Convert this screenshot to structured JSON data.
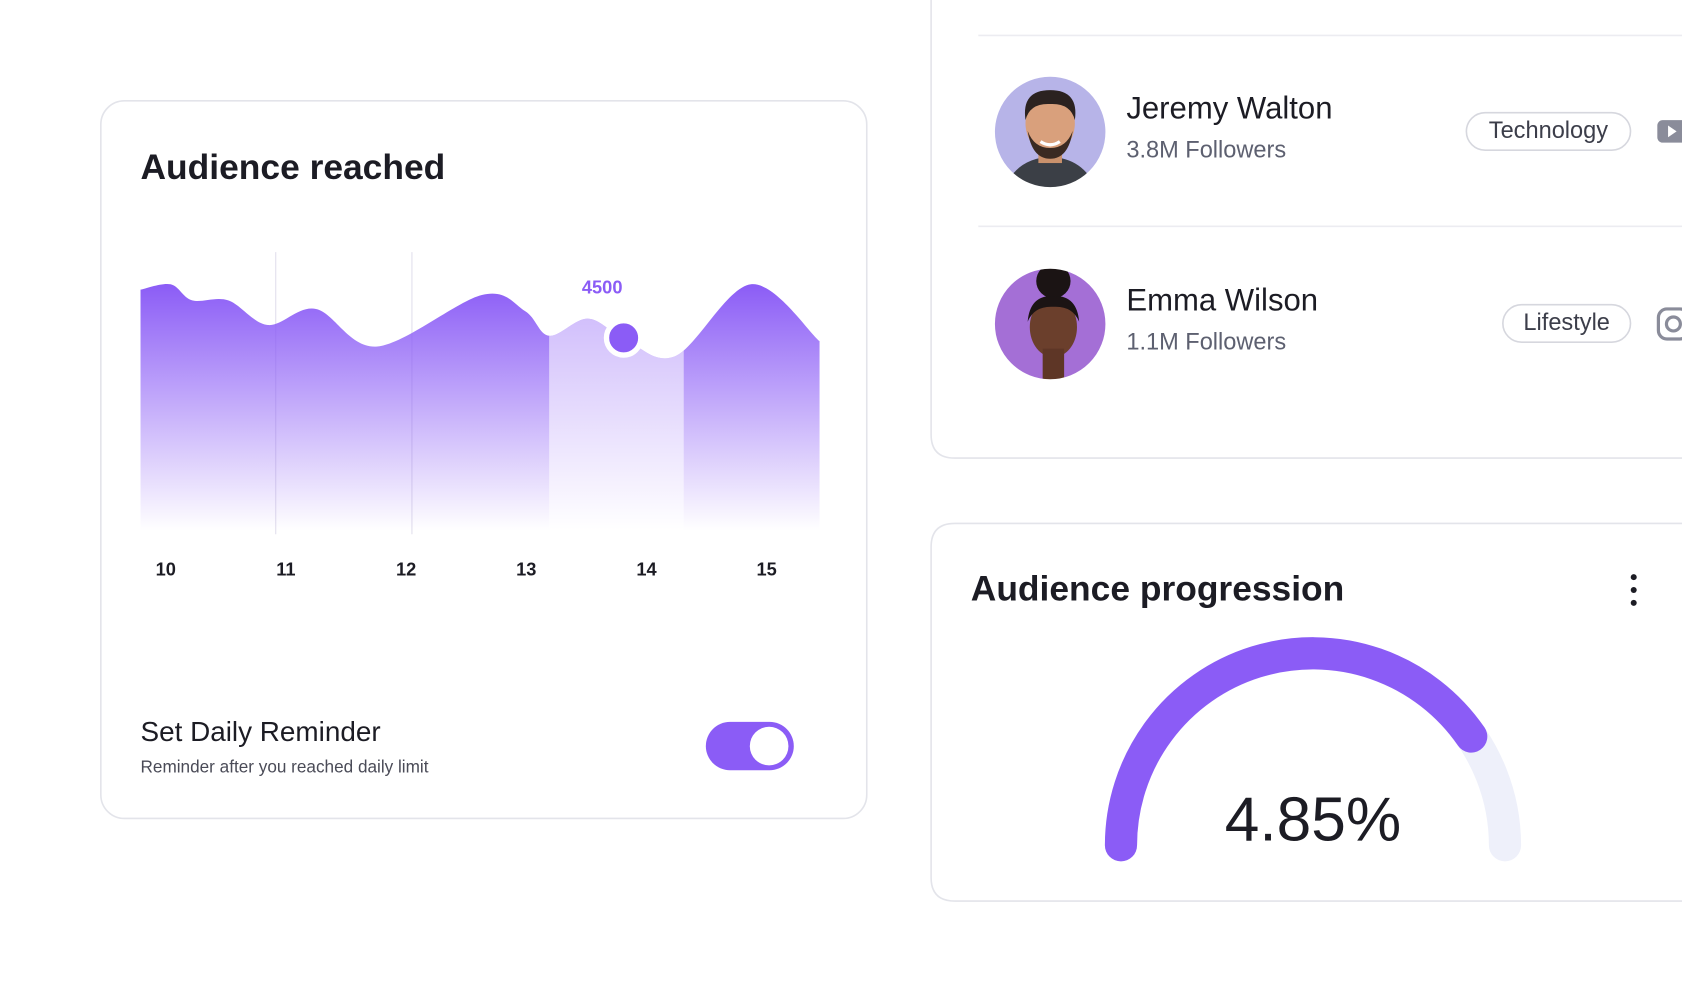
{
  "chart_data": {
    "type": "area",
    "title": "Audience reached",
    "x": [
      9.79,
      10.04,
      10.22,
      10.52,
      10.85,
      11.25,
      11.76,
      12.63,
      12.99,
      13.19,
      13.51,
      13.81,
      14.24,
      14.87,
      15.44
    ],
    "values": [
      5625,
      5750,
      5375,
      5375,
      4800,
      5175,
      4300,
      5500,
      5125,
      4550,
      4950,
      4500,
      4075,
      5750,
      4425
    ],
    "value_labels": [
      null,
      null,
      null,
      null,
      null,
      null,
      null,
      null,
      null,
      null,
      null,
      "4500",
      null,
      null,
      null
    ],
    "xlim": [
      9.79,
      15.44
    ],
    "ylim": [
      0,
      6500
    ],
    "xticks": [
      10,
      11,
      12,
      13,
      14,
      15
    ],
    "highlight_band": [
      13.19,
      14.31
    ],
    "color": "#8b5cf6"
  },
  "reminder": {
    "title": "Set Daily Reminder",
    "subtitle": "Reminder after you reached daily limit",
    "enabled": true
  },
  "influencers": [
    {
      "name": "Jeremy Walton",
      "followers": "3.8M Followers",
      "tag": "Technology"
    },
    {
      "name": "Emma Wilson",
      "followers": "1.1M Followers",
      "tag": "Lifestyle"
    }
  ],
  "audience_progression": {
    "title": "Audience progression",
    "value": 4.85,
    "value_label": "4.85%",
    "range": [
      0,
      6
    ],
    "color": "#8b5cf6"
  }
}
